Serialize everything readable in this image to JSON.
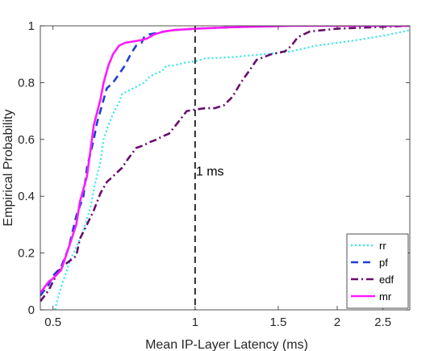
{
  "chart_data": {
    "type": "line",
    "xlabel": "Mean IP-Layer Latency (ms)",
    "ylabel": "Empirical Probability",
    "x_scale": "log",
    "xlim": [
      0.47,
      2.85
    ],
    "ylim": [
      0,
      1
    ],
    "x_ticks": [
      {
        "value": 0.5,
        "label": "0.5"
      },
      {
        "value": 1,
        "label": "1"
      },
      {
        "value": 1.5,
        "label": "1.5"
      },
      {
        "value": 2,
        "label": "2"
      },
      {
        "value": 2.5,
        "label": "2.5"
      }
    ],
    "y_ticks": [
      {
        "value": 0,
        "label": "0"
      },
      {
        "value": 0.2,
        "label": "0.2"
      },
      {
        "value": 0.4,
        "label": "0.4"
      },
      {
        "value": 0.6,
        "label": "0.6"
      },
      {
        "value": 0.8,
        "label": "0.8"
      },
      {
        "value": 1,
        "label": "1"
      }
    ],
    "grid": false,
    "legend_position": "bottom-right",
    "annotations": [
      {
        "text": "1 ms",
        "x": 1.0,
        "y": 0.49
      }
    ],
    "reference_line": {
      "x": 1.0,
      "style": "dashed",
      "color": "#000000"
    },
    "series": [
      {
        "name": "rr",
        "color": "#33e6e6",
        "dash": "2,3",
        "width": 2.2,
        "points": [
          [
            0.505,
            0
          ],
          [
            0.51,
            0.03
          ],
          [
            0.52,
            0.08
          ],
          [
            0.53,
            0.12
          ],
          [
            0.545,
            0.18
          ],
          [
            0.56,
            0.22
          ],
          [
            0.58,
            0.28
          ],
          [
            0.6,
            0.36
          ],
          [
            0.615,
            0.45
          ],
          [
            0.63,
            0.52
          ],
          [
            0.64,
            0.6
          ],
          [
            0.655,
            0.65
          ],
          [
            0.67,
            0.69
          ],
          [
            0.69,
            0.73
          ],
          [
            0.7,
            0.76
          ],
          [
            0.72,
            0.77
          ],
          [
            0.74,
            0.78
          ],
          [
            0.76,
            0.79
          ],
          [
            0.78,
            0.8
          ],
          [
            0.8,
            0.82
          ],
          [
            0.82,
            0.83
          ],
          [
            0.85,
            0.84
          ],
          [
            0.87,
            0.86
          ],
          [
            0.9,
            0.86
          ],
          [
            0.95,
            0.87
          ],
          [
            1.0,
            0.875
          ],
          [
            1.05,
            0.885
          ],
          [
            1.2,
            0.89
          ],
          [
            1.4,
            0.9
          ],
          [
            1.6,
            0.91
          ],
          [
            1.8,
            0.93
          ],
          [
            2.0,
            0.94
          ],
          [
            2.2,
            0.95
          ],
          [
            2.4,
            0.96
          ],
          [
            2.6,
            0.97
          ],
          [
            2.85,
            0.985
          ]
        ]
      },
      {
        "name": "pf",
        "color": "#1f3fd6",
        "dash": "9,6",
        "width": 2.6,
        "points": [
          [
            0.47,
            0.05
          ],
          [
            0.48,
            0.07
          ],
          [
            0.49,
            0.09
          ],
          [
            0.5,
            0.12
          ],
          [
            0.52,
            0.15
          ],
          [
            0.54,
            0.22
          ],
          [
            0.56,
            0.33
          ],
          [
            0.58,
            0.4
          ],
          [
            0.59,
            0.5
          ],
          [
            0.61,
            0.6
          ],
          [
            0.62,
            0.66
          ],
          [
            0.635,
            0.72
          ],
          [
            0.65,
            0.78
          ],
          [
            0.67,
            0.8
          ],
          [
            0.69,
            0.83
          ],
          [
            0.71,
            0.86
          ],
          [
            0.73,
            0.9
          ],
          [
            0.75,
            0.93
          ],
          [
            0.77,
            0.94
          ],
          [
            0.78,
            0.96
          ],
          [
            0.8,
            0.97
          ],
          [
            0.83,
            0.975
          ],
          [
            0.86,
            0.98
          ],
          [
            0.9,
            0.985
          ],
          [
            1.0,
            0.99
          ],
          [
            1.2,
            0.995
          ],
          [
            1.55,
            1.0
          ]
        ]
      },
      {
        "name": "edf",
        "color": "#6a0d6e",
        "dash": "9,4,2,4",
        "width": 2.6,
        "points": [
          [
            0.47,
            0.03
          ],
          [
            0.48,
            0.05
          ],
          [
            0.49,
            0.07
          ],
          [
            0.5,
            0.1
          ],
          [
            0.52,
            0.15
          ],
          [
            0.54,
            0.17
          ],
          [
            0.56,
            0.19
          ],
          [
            0.57,
            0.25
          ],
          [
            0.59,
            0.3
          ],
          [
            0.61,
            0.35
          ],
          [
            0.63,
            0.41
          ],
          [
            0.65,
            0.45
          ],
          [
            0.67,
            0.47
          ],
          [
            0.7,
            0.5
          ],
          [
            0.72,
            0.53
          ],
          [
            0.75,
            0.57
          ],
          [
            0.78,
            0.58
          ],
          [
            0.8,
            0.59
          ],
          [
            0.83,
            0.6
          ],
          [
            0.85,
            0.61
          ],
          [
            0.88,
            0.62
          ],
          [
            0.9,
            0.64
          ],
          [
            0.93,
            0.67
          ],
          [
            0.96,
            0.7
          ],
          [
            1.0,
            0.705
          ],
          [
            1.05,
            0.71
          ],
          [
            1.1,
            0.71
          ],
          [
            1.15,
            0.72
          ],
          [
            1.2,
            0.75
          ],
          [
            1.25,
            0.8
          ],
          [
            1.3,
            0.84
          ],
          [
            1.35,
            0.88
          ],
          [
            1.45,
            0.9
          ],
          [
            1.55,
            0.91
          ],
          [
            1.6,
            0.93
          ],
          [
            1.65,
            0.96
          ],
          [
            1.75,
            0.98
          ],
          [
            2.0,
            0.99
          ],
          [
            2.85,
            1.0
          ]
        ]
      },
      {
        "name": "mr",
        "color": "#ff1aff",
        "dash": "none",
        "width": 2.6,
        "points": [
          [
            0.47,
            0.06
          ],
          [
            0.48,
            0.08
          ],
          [
            0.49,
            0.1
          ],
          [
            0.5,
            0.11
          ],
          [
            0.52,
            0.14
          ],
          [
            0.53,
            0.18
          ],
          [
            0.54,
            0.22
          ],
          [
            0.56,
            0.3
          ],
          [
            0.57,
            0.38
          ],
          [
            0.59,
            0.47
          ],
          [
            0.6,
            0.56
          ],
          [
            0.61,
            0.65
          ],
          [
            0.63,
            0.74
          ],
          [
            0.64,
            0.8
          ],
          [
            0.655,
            0.86
          ],
          [
            0.67,
            0.9
          ],
          [
            0.69,
            0.93
          ],
          [
            0.71,
            0.94
          ],
          [
            0.74,
            0.945
          ],
          [
            0.77,
            0.95
          ],
          [
            0.79,
            0.955
          ],
          [
            0.82,
            0.97
          ],
          [
            0.86,
            0.98
          ],
          [
            0.9,
            0.985
          ],
          [
            1.0,
            0.99
          ],
          [
            1.2,
            0.995
          ],
          [
            1.6,
            1.0
          ],
          [
            2.85,
            1.0
          ]
        ]
      }
    ]
  }
}
